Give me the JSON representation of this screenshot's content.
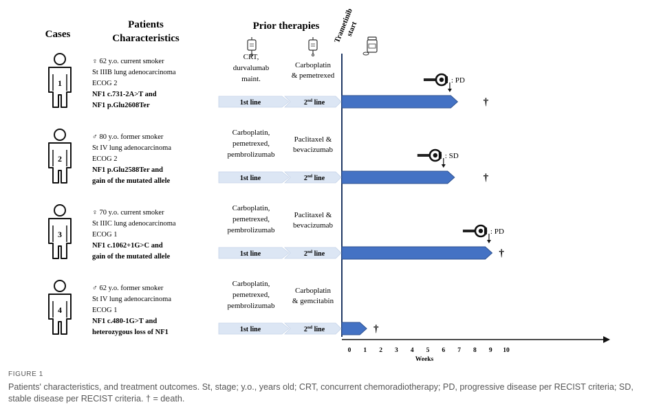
{
  "headers": {
    "cases": "Cases",
    "patients_line1": "Patients",
    "patients_line2": "Characteristics",
    "prior": "Prior therapies",
    "trametinib_line1": "Trametinib",
    "trametinib_line2": "start"
  },
  "cases": [
    {
      "number": "1",
      "characteristics": [
        "♀ 62 y.o. current smoker",
        "St IIIB lung adenocarcinoma",
        "ECOG 2",
        "NF1 c.731-2A>T and",
        "NF1 p.Glu2608Ter"
      ],
      "first_line_therapy": [
        "CRT,",
        "durvalumab",
        "maint."
      ],
      "second_line_therapy": [
        "Carboplatin",
        "& pemetrexed"
      ],
      "first_line_label": "1st line",
      "second_line_label": [
        "2",
        "nd",
        " line"
      ],
      "treatment_weeks": 6.9,
      "response_week": 6.4,
      "response": ": PD",
      "death_marker": "†",
      "death_week": 8.7
    },
    {
      "number": "2",
      "characteristics": [
        "♂ 80 y.o. former smoker",
        "St IV lung adenocarcinoma",
        "ECOG 2",
        "NF1 p.Glu2588Ter and",
        "gain of the mutated allele"
      ],
      "first_line_therapy": [
        "Carboplatin,",
        "pemetrexed,",
        "pembrolizumab"
      ],
      "second_line_therapy": [
        "Paclitaxel &",
        "bevacizumab"
      ],
      "first_line_label": "1st line",
      "second_line_label": [
        "2",
        "nd",
        " line"
      ],
      "treatment_weeks": 6.7,
      "response_week": 6.0,
      "response": ": SD",
      "death_marker": "†",
      "death_week": 8.7
    },
    {
      "number": "3",
      "characteristics": [
        "♀ 70 y.o. current smoker",
        "St IIIC lung adenocarcinoma",
        "ECOG 1",
        "NF1 c.1062+1G>C and",
        "gain of the mutated allele"
      ],
      "first_line_therapy": [
        "Carboplatin,",
        "pemetrexed,",
        "pembrolizumab"
      ],
      "second_line_therapy": [
        "Paclitaxel &",
        "bevacizumab"
      ],
      "first_line_label": "1st line",
      "second_line_label": [
        "2",
        "nd",
        " line"
      ],
      "treatment_weeks": 9.1,
      "response_week": 8.9,
      "response": ": PD",
      "death_marker": "†",
      "death_week": 9.7
    },
    {
      "number": "4",
      "characteristics": [
        "♂ 62 y.o. former smoker",
        "St IV lung adenocarcinoma",
        "ECOG 1",
        "NF1 c.480-1G>T and",
        "heterozygous loss of NF1"
      ],
      "first_line_therapy": [
        "Carboplatin,",
        "pemetrexed,",
        "pembrolizumab"
      ],
      "second_line_therapy": [
        "Carboplatin",
        "& gemcitabin"
      ],
      "first_line_label": "1st line",
      "second_line_label": [
        "2",
        "nd",
        " line"
      ],
      "treatment_weeks": 1.1,
      "response_week": null,
      "response": "",
      "death_marker": "†",
      "death_week": 1.7
    }
  ],
  "axis": {
    "ticks": [
      "0",
      "1",
      "2",
      "3",
      "4",
      "5",
      "6",
      "7",
      "8",
      "9",
      "10"
    ],
    "label": "Weeks",
    "range": [
      0,
      10
    ]
  },
  "colors": {
    "bar": "#4472c4",
    "bar_stroke": "#2f528f",
    "line_arrow_fill": "#dce6f4",
    "timeline": "#1f3864",
    "axis": "#111111"
  },
  "icons": [
    "person-icon",
    "iv-bag-icon",
    "pill-bottle-icon",
    "tape-measure-icon",
    "down-arrow-icon"
  ],
  "caption": {
    "label": "FIGURE 1",
    "text": "Patients' characteristics, and treatment outcomes. St, stage; y.o., years old; CRT, concurrent chemoradiotherapy; PD, progressive disease per RECIST criteria; SD, stable disease per RECIST criteria. † = death."
  }
}
